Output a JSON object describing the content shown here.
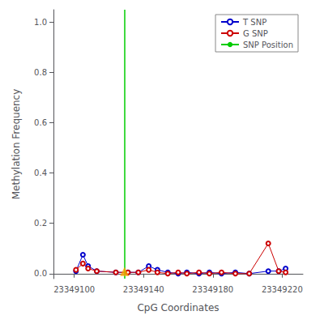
{
  "chart_data": {
    "type": "line",
    "xlabel": "CpG Coordinates",
    "ylabel": "Methylation Frequency",
    "series": [
      {
        "name": "T SNP",
        "color": "#0000cc",
        "marker": "circle",
        "x": [
          23349101,
          23349105,
          23349108,
          23349113,
          23349124,
          23349131,
          23349137,
          23349143,
          23349148,
          23349154,
          23349160,
          23349165,
          23349172,
          23349178,
          23349185,
          23349193,
          23349201,
          23349212,
          23349218,
          23349222
        ],
        "values": [
          0.01,
          0.075,
          0.03,
          0.01,
          0.005,
          0.005,
          0.005,
          0.03,
          0.015,
          0.005,
          0.0,
          0.005,
          0.0,
          0.005,
          0.0,
          0.005,
          0.0,
          0.01,
          0.01,
          0.02
        ]
      },
      {
        "name": "G SNP",
        "color": "#cc0000",
        "marker": "circle",
        "x": [
          23349101,
          23349105,
          23349108,
          23349113,
          23349124,
          23349131,
          23349137,
          23349143,
          23349148,
          23349154,
          23349160,
          23349165,
          23349172,
          23349178,
          23349185,
          23349193,
          23349201,
          23349212,
          23349218,
          23349222
        ],
        "values": [
          0.015,
          0.04,
          0.02,
          0.01,
          0.005,
          0.005,
          0.005,
          0.015,
          0.005,
          0.0,
          0.005,
          0.0,
          0.005,
          0.0,
          0.005,
          0.0,
          0.0,
          0.12,
          0.01,
          0.005
        ]
      }
    ],
    "snp_line": {
      "name": "SNP Position",
      "x": 23349129,
      "color": "#00cc00"
    },
    "snp_marker": {
      "x": 23349129,
      "y": 0.008,
      "color": "#FFA500",
      "marker": "triangle"
    },
    "xlim": [
      23349088,
      23349232
    ],
    "xticks": [
      23349100,
      23349140,
      23349180,
      23349220
    ],
    "ylim": [
      -0.02,
      1.05
    ],
    "yticks": [
      {
        "value": 0.0,
        "label": "0.0"
      },
      0.2,
      0.4,
      0.6,
      0.8,
      {
        "value": 1.0,
        "label": "1.0"
      }
    ],
    "legend": "upper right",
    "grid": false
  }
}
